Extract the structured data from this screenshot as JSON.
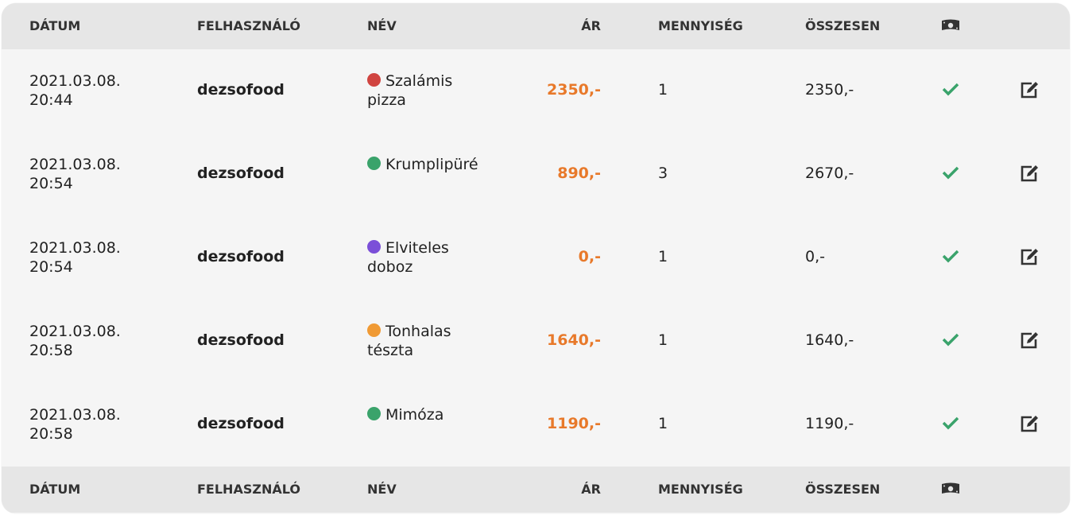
{
  "columns": [
    "DÁTUM",
    "FELHASZNÁLÓ",
    "NÉV",
    "ÁR",
    "MENNYISÉG",
    "ÖSSZESEN"
  ],
  "pay_icon": "money-bill-icon",
  "colors": {
    "price": "#e8792a",
    "check": "#3aa36b",
    "header_bg": "#e6e6e6"
  },
  "rows": [
    {
      "date": "2021.03.08.",
      "time": "20:44",
      "user": "dezsofood",
      "name": "Szalámis pizza",
      "dot": "#d04440",
      "price": "2350,-",
      "qty": "1",
      "total": "2350,-"
    },
    {
      "date": "2021.03.08.",
      "time": "20:54",
      "user": "dezsofood",
      "name": "Krumplipüré",
      "dot": "#3aa36b",
      "price": "890,-",
      "qty": "3",
      "total": "2670,-"
    },
    {
      "date": "2021.03.08.",
      "time": "20:54",
      "user": "dezsofood",
      "name": "Elviteles doboz",
      "dot": "#7b4fd8",
      "price": "0,-",
      "qty": "1",
      "total": "0,-"
    },
    {
      "date": "2021.03.08.",
      "time": "20:58",
      "user": "dezsofood",
      "name": "Tonhalas tészta",
      "dot": "#f09a34",
      "price": "1640,-",
      "qty": "1",
      "total": "1640,-"
    },
    {
      "date": "2021.03.08.",
      "time": "20:58",
      "user": "dezsofood",
      "name": "Mimóza",
      "dot": "#3aa36b",
      "price": "1190,-",
      "qty": "1",
      "total": "1190,-"
    }
  ]
}
